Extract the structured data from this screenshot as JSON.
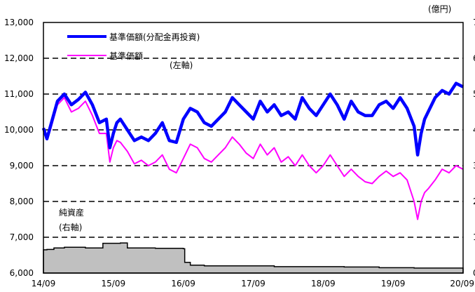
{
  "chart_data": {
    "type": "line",
    "title": "",
    "xlabel": "",
    "ylabel_left": "",
    "ylabel_right": "(億円)",
    "x_categories": [
      "14/09",
      "15/09",
      "16/09",
      "17/09",
      "18/09",
      "19/09",
      "20/09"
    ],
    "y_left": {
      "min": 6000,
      "max": 13000,
      "ticks": [
        "6,000",
        "7,000",
        "8,000",
        "9,000",
        "10,000",
        "11,000",
        "12,000",
        "13,000"
      ]
    },
    "y_right": {
      "min": 0,
      "max": 700,
      "ticks": [
        "0",
        "100",
        "200",
        "300",
        "400",
        "500",
        "600",
        "700"
      ]
    },
    "grid": "horizontal-dashed",
    "legend_position": "top-left",
    "annotations": {
      "left_axis_note": "(左軸)",
      "nav_label": "純資産",
      "nav_axis_note": "(右軸)"
    },
    "series": [
      {
        "name": "基準価額(分配金再投資)",
        "axis": "left",
        "color": "#0000ff",
        "x": [
          2014.7,
          2014.75,
          2014.8,
          2014.9,
          2015.0,
          2015.1,
          2015.2,
          2015.3,
          2015.4,
          2015.5,
          2015.6,
          2015.65,
          2015.7,
          2015.75,
          2015.8,
          2015.9,
          2016.0,
          2016.1,
          2016.2,
          2016.3,
          2016.4,
          2016.5,
          2016.6,
          2016.7,
          2016.8,
          2016.9,
          2017.0,
          2017.1,
          2017.2,
          2017.3,
          2017.4,
          2017.5,
          2017.6,
          2017.7,
          2017.8,
          2017.9,
          2018.0,
          2018.1,
          2018.2,
          2018.3,
          2018.4,
          2018.5,
          2018.6,
          2018.7,
          2018.8,
          2018.9,
          2019.0,
          2019.1,
          2019.2,
          2019.3,
          2019.4,
          2019.5,
          2019.6,
          2019.7,
          2019.8,
          2019.9,
          2020.0,
          2020.05,
          2020.1,
          2020.15,
          2020.2,
          2020.3,
          2020.4,
          2020.5,
          2020.6,
          2020.7
        ],
        "values": [
          10050,
          9750,
          10100,
          10800,
          11000,
          10700,
          10850,
          11050,
          10700,
          10200,
          10300,
          9500,
          9900,
          10200,
          10300,
          10000,
          9700,
          9800,
          9700,
          9900,
          10200,
          9700,
          9650,
          10300,
          10600,
          10500,
          10200,
          10100,
          10300,
          10500,
          10900,
          10700,
          10500,
          10300,
          10800,
          10500,
          10700,
          10400,
          10500,
          10300,
          10900,
          10600,
          10400,
          10700,
          11000,
          10700,
          10300,
          10800,
          10500,
          10400,
          10400,
          10700,
          10800,
          10600,
          10900,
          10600,
          10100,
          9300,
          9900,
          10300,
          10500,
          10900,
          11100,
          11000,
          11300,
          11200
        ]
      },
      {
        "name": "基準価額",
        "axis": "left",
        "color": "#ff00ff",
        "x": [
          2014.7,
          2014.75,
          2014.8,
          2014.9,
          2015.0,
          2015.1,
          2015.2,
          2015.3,
          2015.4,
          2015.5,
          2015.6,
          2015.65,
          2015.7,
          2015.75,
          2015.8,
          2015.9,
          2016.0,
          2016.1,
          2016.2,
          2016.3,
          2016.4,
          2016.5,
          2016.6,
          2016.7,
          2016.8,
          2016.9,
          2017.0,
          2017.1,
          2017.2,
          2017.3,
          2017.4,
          2017.5,
          2017.6,
          2017.7,
          2017.8,
          2017.9,
          2018.0,
          2018.1,
          2018.2,
          2018.3,
          2018.4,
          2018.5,
          2018.6,
          2018.7,
          2018.8,
          2018.9,
          2019.0,
          2019.1,
          2019.2,
          2019.3,
          2019.4,
          2019.5,
          2019.6,
          2019.7,
          2019.8,
          2019.9,
          2020.0,
          2020.05,
          2020.1,
          2020.15,
          2020.2,
          2020.3,
          2020.4,
          2020.5,
          2020.6,
          2020.7
        ],
        "values": [
          10050,
          9750,
          10000,
          10700,
          10900,
          10500,
          10600,
          10800,
          10400,
          9900,
          9900,
          9100,
          9500,
          9700,
          9650,
          9400,
          9050,
          9150,
          9000,
          9100,
          9300,
          8900,
          8800,
          9200,
          9600,
          9500,
          9200,
          9100,
          9300,
          9500,
          9800,
          9600,
          9350,
          9200,
          9600,
          9300,
          9500,
          9100,
          9250,
          9000,
          9300,
          9000,
          8800,
          9000,
          9300,
          9000,
          8700,
          8900,
          8700,
          8550,
          8500,
          8700,
          8850,
          8700,
          8800,
          8600,
          8000,
          7500,
          8000,
          8250,
          8350,
          8600,
          8900,
          8800,
          9000,
          8900
        ]
      },
      {
        "name": "純資産",
        "axis": "right",
        "color": "#c0c0c0",
        "x": [
          2014.7,
          2014.75,
          2014.85,
          2015.0,
          2015.3,
          2015.5,
          2015.55,
          2015.8,
          2015.9,
          2016.3,
          2016.7,
          2016.72,
          2016.8,
          2017.0,
          2018.0,
          2019.0,
          2019.5,
          2020.0,
          2020.7
        ],
        "values": [
          65,
          66,
          70,
          72,
          70,
          70,
          83,
          84,
          70,
          69,
          68,
          30,
          22,
          20,
          18,
          17,
          15,
          14,
          14
        ]
      }
    ]
  }
}
